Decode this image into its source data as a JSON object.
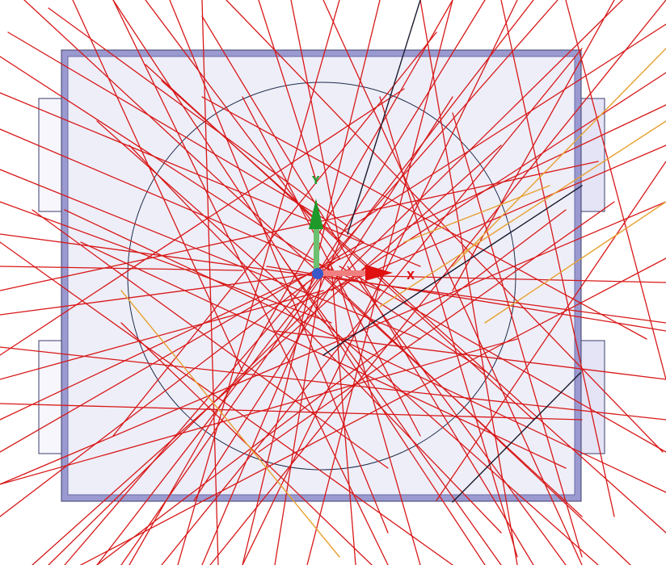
{
  "scene": {
    "background": "#ffffff",
    "board_fill": "#eeeef8",
    "board_edge": "#9a9ad0",
    "board_outline": "#3c3c6e",
    "tab_fill": "#f6f6fc",
    "circle_stroke": "#1e2a4a",
    "ray_colors": {
      "red": "#d81818",
      "dark": "#2a2a2a",
      "orange": "#e8a030",
      "black": "#1a1a2e"
    }
  },
  "triad": {
    "x_label": "X",
    "y_label": "Y",
    "x_color": "#e01010",
    "y_color": "#1f9a2a",
    "origin_color": "#3a58c8"
  }
}
